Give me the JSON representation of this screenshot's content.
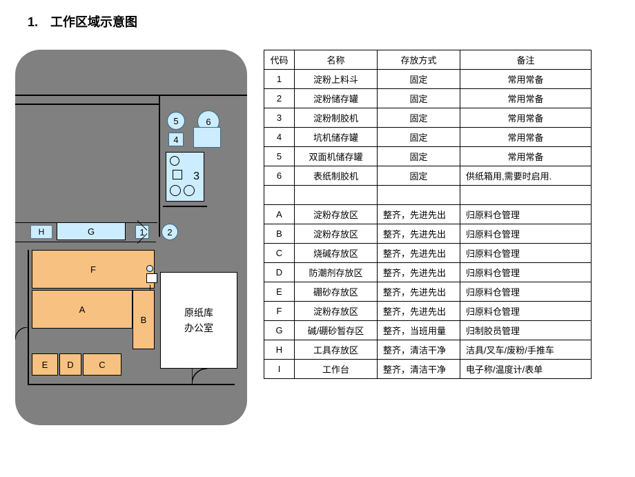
{
  "title": "1.　工作区域示意图",
  "table": {
    "columns": [
      "代码",
      "名称",
      "存放方式",
      "备注"
    ],
    "rows": [
      [
        "1",
        "淀粉上料斗",
        "固定",
        "常用常备"
      ],
      [
        "2",
        "淀粉储存罐",
        "固定",
        "常用常备"
      ],
      [
        "3",
        "淀粉制胶机",
        "固定",
        "常用常备"
      ],
      [
        "4",
        "坑机储存罐",
        "固定",
        "常用常备"
      ],
      [
        "5",
        "双面机储存罐",
        "固定",
        "常用常备"
      ],
      [
        "6",
        "表纸制胶机",
        "固定",
        "供纸箱用,需要时启用."
      ],
      [
        "",
        "",
        "",
        ""
      ],
      [
        "A",
        "淀粉存放区",
        "整齐，先进先出",
        "归原料仓管理"
      ],
      [
        "B",
        "淀粉存放区",
        "整齐，先进先出",
        "归原料仓管理"
      ],
      [
        "C",
        "烧碱存放区",
        "整齐，先进先出",
        "归原料仓管理"
      ],
      [
        "D",
        "防潮剂存放区",
        "整齐，先进先出",
        "归原料仓管理"
      ],
      [
        "E",
        "硼砂存放区",
        "整齐，先进先出",
        "归原料仓管理"
      ],
      [
        "F",
        "淀粉存放区",
        "整齐，先进先出",
        "归原料仓管理"
      ],
      [
        "G",
        "碱/硼砂暂存区",
        "整齐，当班用量",
        "归制胶员管理"
      ],
      [
        "H",
        "工具存放区",
        "整齐，清洁干净",
        "洁具/叉车/废粉/手推车"
      ],
      [
        "I",
        "工作台",
        "整齐，清洁干净",
        "电子称/温度计/表单"
      ]
    ],
    "center_method_rows": [
      0,
      1,
      2,
      3,
      4,
      5
    ],
    "center_note_rows": [
      0,
      1,
      2,
      3,
      4
    ]
  },
  "diagram": {
    "bg_color": "#808080",
    "zone_blue": "#ccecff",
    "zone_orange": "#f7c181",
    "zone_white": "#ffffff",
    "labels": {
      "office": "原纸库\n办公室",
      "H": "H",
      "G": "G",
      "F": "F",
      "A": "A",
      "B": "B",
      "E": "E",
      "D": "D",
      "C": "C",
      "n1": "1",
      "n2": "2",
      "n3": "3",
      "n4": "4",
      "n5": "5",
      "n6": "6",
      "I": "I"
    }
  }
}
